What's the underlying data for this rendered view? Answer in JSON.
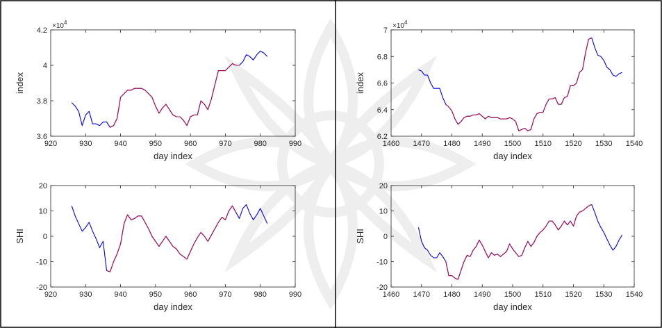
{
  "colors": {
    "series_a": "#0000e6",
    "series_b": "#b0104a",
    "axis": "#262626",
    "watermark": "#d4d4d4"
  },
  "chart_data": [
    {
      "type": "line",
      "xlabel": "day index",
      "ylabel": "index",
      "exponent_label": "×10^4",
      "xlim": [
        920,
        990
      ],
      "ylim": [
        3.6,
        4.2
      ],
      "xticks": [
        "920",
        "930",
        "940",
        "950",
        "960",
        "970",
        "980",
        "990"
      ],
      "yticks": [
        "3.6",
        "3.8",
        "4",
        "4.2"
      ],
      "grid": false,
      "series": [
        {
          "color": "#0000e6",
          "x": [
            926,
            927,
            928,
            929,
            930,
            931,
            932,
            933,
            934,
            935,
            936,
            937,
            938,
            939,
            940,
            941,
            942,
            943,
            944,
            945,
            946,
            947,
            948,
            949,
            950,
            951,
            952,
            953,
            954,
            955,
            956,
            957,
            958,
            959,
            960,
            961,
            962,
            963,
            964,
            965,
            966,
            967,
            968,
            969,
            970,
            971,
            972,
            973,
            974,
            975,
            976,
            977,
            978,
            979,
            980,
            981,
            982
          ],
          "y": [
            3.79,
            3.77,
            3.74,
            3.66,
            3.72,
            3.74,
            3.67,
            3.67,
            3.66,
            3.68,
            3.68,
            3.65,
            3.66,
            3.7,
            3.82,
            3.84,
            3.86,
            3.86,
            3.87,
            3.87,
            3.87,
            3.86,
            3.84,
            3.82,
            3.77,
            3.73,
            3.76,
            3.78,
            3.75,
            3.72,
            3.71,
            3.71,
            3.69,
            3.66,
            3.71,
            3.72,
            3.72,
            3.8,
            3.78,
            3.75,
            3.81,
            3.89,
            3.97,
            3.97,
            3.97,
            3.99,
            4.01,
            4.0,
            4.0,
            4.02,
            4.06,
            4.05,
            4.03,
            4.06,
            4.08,
            4.07,
            4.05
          ]
        },
        {
          "color": "#b0104a",
          "x": [
            937,
            938,
            939,
            940,
            941,
            942,
            943,
            944,
            945,
            946,
            947,
            948,
            949,
            950,
            951,
            952,
            953,
            954,
            955,
            956,
            957,
            958,
            959,
            960,
            961,
            962,
            963,
            964,
            965,
            966,
            967,
            968,
            969,
            970,
            971,
            972,
            973,
            974
          ],
          "y": [
            3.65,
            3.66,
            3.7,
            3.82,
            3.84,
            3.86,
            3.86,
            3.87,
            3.87,
            3.87,
            3.86,
            3.84,
            3.82,
            3.77,
            3.73,
            3.76,
            3.78,
            3.75,
            3.72,
            3.71,
            3.71,
            3.69,
            3.66,
            3.71,
            3.72,
            3.72,
            3.8,
            3.78,
            3.75,
            3.81,
            3.89,
            3.97,
            3.97,
            3.97,
            3.99,
            4.01,
            4.0,
            4.0
          ]
        }
      ]
    },
    {
      "type": "line",
      "xlabel": "day index",
      "ylabel": "index",
      "exponent_label": "×10^4",
      "xlim": [
        1460,
        1540
      ],
      "ylim": [
        6.2,
        7.0
      ],
      "xticks": [
        "1460",
        "1470",
        "1480",
        "1490",
        "1500",
        "1510",
        "1520",
        "1530",
        "1540"
      ],
      "yticks": [
        "6.2",
        "6.4",
        "6.6",
        "6.8",
        "7"
      ],
      "grid": false,
      "series": [
        {
          "color": "#0000e6",
          "x": [
            1469,
            1470,
            1471,
            1472,
            1473,
            1474,
            1475,
            1476,
            1477,
            1478,
            1479,
            1480,
            1481,
            1482,
            1483,
            1484,
            1485,
            1486,
            1487,
            1488,
            1489,
            1490,
            1491,
            1492,
            1493,
            1494,
            1495,
            1496,
            1497,
            1498,
            1499,
            1500,
            1501,
            1502,
            1503,
            1504,
            1505,
            1506,
            1507,
            1508,
            1509,
            1510,
            1511,
            1512,
            1513,
            1514,
            1515,
            1516,
            1517,
            1518,
            1519,
            1520,
            1521,
            1522,
            1523,
            1524,
            1525,
            1526,
            1527,
            1528,
            1529,
            1530,
            1531,
            1532,
            1533,
            1534,
            1535,
            1536
          ],
          "y": [
            6.7,
            6.69,
            6.66,
            6.66,
            6.6,
            6.56,
            6.56,
            6.56,
            6.49,
            6.44,
            6.42,
            6.39,
            6.33,
            6.29,
            6.31,
            6.34,
            6.35,
            6.35,
            6.36,
            6.36,
            6.37,
            6.35,
            6.33,
            6.35,
            6.34,
            6.34,
            6.34,
            6.33,
            6.33,
            6.33,
            6.34,
            6.33,
            6.31,
            6.24,
            6.25,
            6.26,
            6.24,
            6.25,
            6.33,
            6.37,
            6.38,
            6.38,
            6.44,
            6.48,
            6.48,
            6.49,
            6.44,
            6.44,
            6.49,
            6.5,
            6.58,
            6.58,
            6.6,
            6.68,
            6.7,
            6.83,
            6.93,
            6.94,
            6.87,
            6.81,
            6.8,
            6.77,
            6.72,
            6.7,
            6.66,
            6.65,
            6.67,
            6.68
          ]
        },
        {
          "color": "#b0104a",
          "x": [
            1478,
            1479,
            1480,
            1481,
            1482,
            1483,
            1484,
            1485,
            1486,
            1487,
            1488,
            1489,
            1490,
            1491,
            1492,
            1493,
            1494,
            1495,
            1496,
            1497,
            1498,
            1499,
            1500,
            1501,
            1502,
            1503,
            1504,
            1505,
            1506,
            1507,
            1508,
            1509,
            1510,
            1511,
            1512,
            1513,
            1514,
            1515,
            1516,
            1517,
            1518,
            1519,
            1520,
            1521,
            1522,
            1523,
            1524,
            1525,
            1526
          ],
          "y": [
            6.44,
            6.42,
            6.39,
            6.33,
            6.29,
            6.31,
            6.34,
            6.35,
            6.35,
            6.36,
            6.36,
            6.37,
            6.35,
            6.33,
            6.35,
            6.34,
            6.34,
            6.34,
            6.33,
            6.33,
            6.33,
            6.34,
            6.33,
            6.31,
            6.24,
            6.25,
            6.26,
            6.24,
            6.25,
            6.33,
            6.37,
            6.38,
            6.38,
            6.44,
            6.48,
            6.48,
            6.49,
            6.44,
            6.44,
            6.49,
            6.5,
            6.58,
            6.58,
            6.6,
            6.68,
            6.7,
            6.83,
            6.93,
            6.94
          ]
        }
      ]
    },
    {
      "type": "line",
      "xlabel": "day index",
      "ylabel": "SHI",
      "xlim": [
        920,
        990
      ],
      "ylim": [
        -20,
        20
      ],
      "xticks": [
        "920",
        "930",
        "940",
        "950",
        "960",
        "970",
        "980",
        "990"
      ],
      "yticks": [
        "-20",
        "-10",
        "0",
        "10",
        "20"
      ],
      "grid": false,
      "series": [
        {
          "color": "#0000e6",
          "x": [
            926,
            927,
            928,
            929,
            930,
            931,
            932,
            933,
            934,
            935,
            936,
            937,
            938,
            939,
            940,
            941,
            942,
            943,
            944,
            945,
            946,
            947,
            948,
            949,
            950,
            951,
            952,
            953,
            954,
            955,
            956,
            957,
            958,
            959,
            960,
            961,
            962,
            963,
            964,
            965,
            966,
            967,
            968,
            969,
            970,
            971,
            972,
            973,
            974,
            975,
            976,
            977,
            978,
            979,
            980,
            981,
            982
          ],
          "y": [
            12,
            8,
            5,
            2,
            3.5,
            5.5,
            2,
            -1,
            -4.5,
            -2,
            -13.5,
            -14,
            -10,
            -7,
            -3,
            5,
            8.5,
            6.5,
            7,
            8,
            8,
            5.5,
            3,
            0,
            -2,
            -4,
            -2,
            0,
            -2,
            -4,
            -5,
            -7,
            -8,
            -9,
            -6,
            -3,
            -0.5,
            1.5,
            0,
            -2,
            0.5,
            3,
            5.5,
            7.5,
            6.5,
            10,
            12,
            9.5,
            7,
            11,
            12.5,
            9,
            6.5,
            8.5,
            11,
            8,
            5
          ]
        },
        {
          "color": "#b0104a",
          "x": [
            936,
            937,
            938,
            939,
            940,
            941,
            942,
            943,
            944,
            945,
            946,
            947,
            948,
            949,
            950,
            951,
            952,
            953,
            954,
            955,
            956,
            957,
            958,
            959,
            960,
            961,
            962,
            963,
            964,
            965,
            966,
            967,
            968,
            969,
            970,
            971,
            972,
            973
          ],
          "y": [
            -13.5,
            -14,
            -10,
            -7,
            -3,
            5,
            8.5,
            6.5,
            7,
            8,
            8,
            5.5,
            3,
            0,
            -2,
            -4,
            -2,
            0,
            -2,
            -4,
            -5,
            -7,
            -8,
            -9,
            -6,
            -3,
            -0.5,
            1.5,
            0,
            -2,
            0.5,
            3,
            5.5,
            7.5,
            6.5,
            10,
            12,
            9.5
          ]
        }
      ]
    },
    {
      "type": "line",
      "xlabel": "day index",
      "ylabel": "SHI",
      "xlim": [
        1460,
        1540
      ],
      "ylim": [
        -20,
        20
      ],
      "xticks": [
        "1460",
        "1470",
        "1480",
        "1490",
        "1500",
        "1510",
        "1520",
        "1530",
        "1540"
      ],
      "yticks": [
        "-20",
        "-10",
        "0",
        "10",
        "20"
      ],
      "grid": false,
      "series": [
        {
          "color": "#0000e6",
          "x": [
            1469,
            1470,
            1471,
            1472,
            1473,
            1474,
            1475,
            1476,
            1477,
            1478,
            1479,
            1480,
            1481,
            1482,
            1483,
            1484,
            1485,
            1486,
            1487,
            1488,
            1489,
            1490,
            1491,
            1492,
            1493,
            1494,
            1495,
            1496,
            1497,
            1498,
            1499,
            1500,
            1501,
            1502,
            1503,
            1504,
            1505,
            1506,
            1507,
            1508,
            1509,
            1510,
            1511,
            1512,
            1513,
            1514,
            1515,
            1516,
            1517,
            1518,
            1519,
            1520,
            1521,
            1522,
            1523,
            1524,
            1525,
            1526,
            1527,
            1528,
            1529,
            1530,
            1531,
            1532,
            1533,
            1534,
            1535,
            1536
          ],
          "y": [
            3.5,
            -2,
            -4.5,
            -5.5,
            -7.5,
            -8.5,
            -8.5,
            -6.5,
            -8,
            -10,
            -15.5,
            -15.5,
            -16.5,
            -17,
            -13.5,
            -10,
            -7.5,
            -8,
            -5.5,
            -4,
            -1.5,
            -3.5,
            -6,
            -8.5,
            -6.5,
            -7.5,
            -7,
            -8,
            -7,
            -6,
            -3,
            -5,
            -6.5,
            -8,
            -7.5,
            -4.5,
            -2,
            -4,
            -2.5,
            0,
            1.5,
            2.5,
            4,
            6,
            6,
            4.5,
            2.5,
            4,
            6,
            4.5,
            6,
            4,
            8,
            9.5,
            10,
            11,
            12,
            12.5,
            9.5,
            6,
            3.5,
            1.5,
            -1,
            -3.5,
            -5.5,
            -4,
            -1.5,
            0.5
          ]
        },
        {
          "color": "#b0104a",
          "x": [
            1478,
            1479,
            1480,
            1481,
            1482,
            1483,
            1484,
            1485,
            1486,
            1487,
            1488,
            1489,
            1490,
            1491,
            1492,
            1493,
            1494,
            1495,
            1496,
            1497,
            1498,
            1499,
            1500,
            1501,
            1502,
            1503,
            1504,
            1505,
            1506,
            1507,
            1508,
            1509,
            1510,
            1511,
            1512,
            1513,
            1514,
            1515,
            1516,
            1517,
            1518,
            1519,
            1520,
            1521,
            1522,
            1523,
            1524,
            1525,
            1526
          ],
          "y": [
            -10,
            -15.5,
            -15.5,
            -16.5,
            -17,
            -13.5,
            -10,
            -7.5,
            -8,
            -5.5,
            -4,
            -1.5,
            -3.5,
            -6,
            -8.5,
            -6.5,
            -7.5,
            -7,
            -8,
            -7,
            -6,
            -3,
            -5,
            -6.5,
            -8,
            -7.5,
            -4.5,
            -2,
            -4,
            -2.5,
            0,
            1.5,
            2.5,
            4,
            6,
            6,
            4.5,
            2.5,
            4,
            6,
            4.5,
            6,
            4,
            8,
            9.5,
            10,
            11,
            12,
            12.5
          ]
        }
      ]
    }
  ]
}
